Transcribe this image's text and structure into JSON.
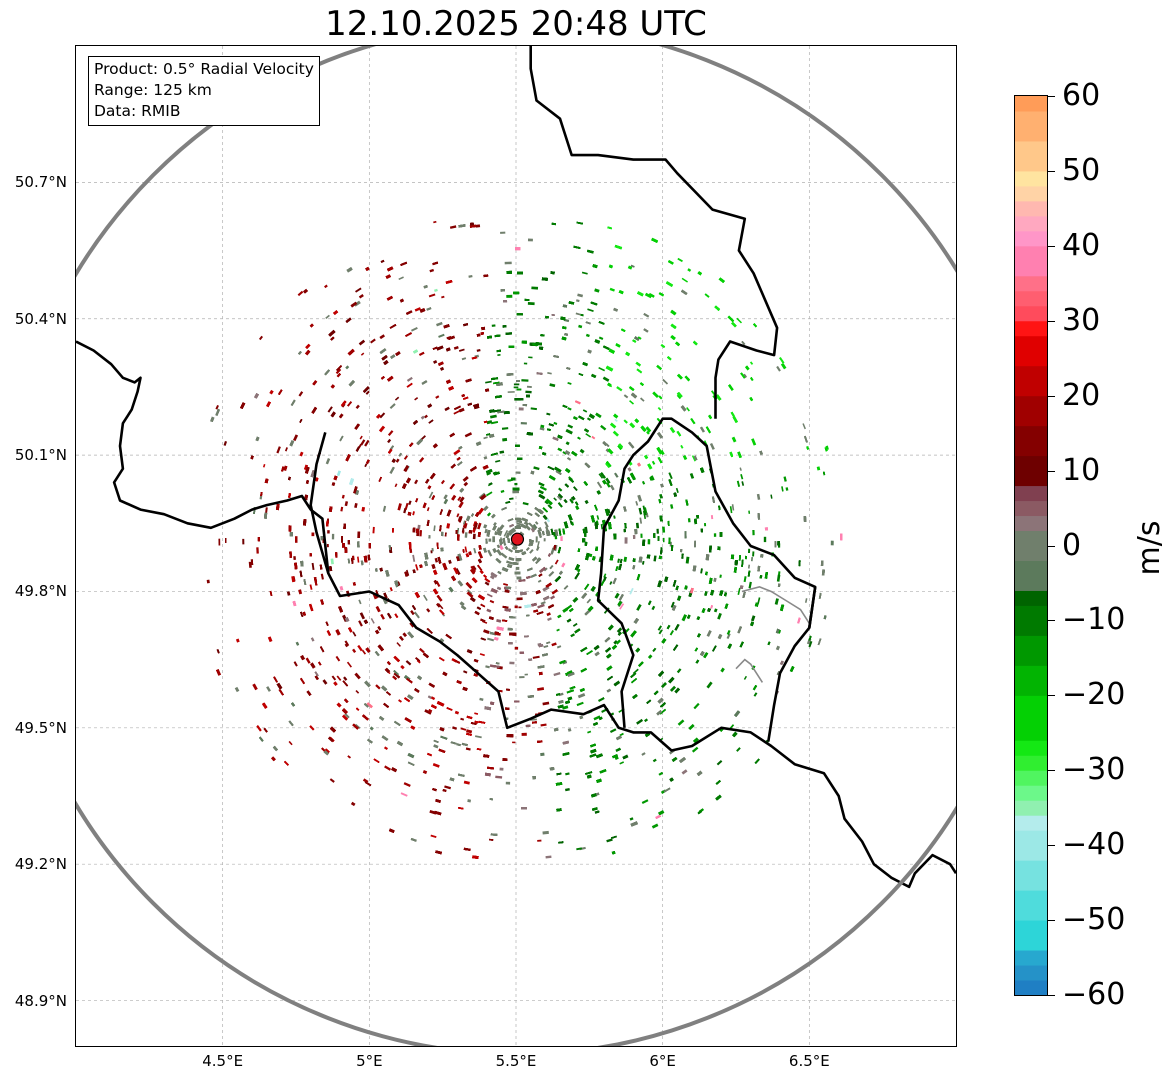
{
  "title": "12.10.2025 20:48 UTC",
  "info_box": {
    "product": "Product: 0.5° Radial Velocity",
    "range": "Range: 125 km",
    "data": "Data: RMIB"
  },
  "map": {
    "lon_range": [
      4.0,
      7.0
    ],
    "lat_range": [
      48.8,
      51.0
    ],
    "lat_ticks": [
      {
        "value": 48.9,
        "label": "48.9°N"
      },
      {
        "value": 49.2,
        "label": "49.2°N"
      },
      {
        "value": 49.5,
        "label": "49.5°N"
      },
      {
        "value": 49.8,
        "label": "49.8°N"
      },
      {
        "value": 50.1,
        "label": "50.1°N"
      },
      {
        "value": 50.4,
        "label": "50.4°N"
      },
      {
        "value": 50.7,
        "label": "50.7°N"
      }
    ],
    "lon_ticks": [
      {
        "value": 4.5,
        "label": "4.5°E"
      },
      {
        "value": 5.0,
        "label": "5°E"
      },
      {
        "value": 5.5,
        "label": "5.5°E"
      },
      {
        "value": 6.0,
        "label": "6°E"
      },
      {
        "value": 6.5,
        "label": "6.5°E"
      }
    ],
    "radar_site": {
      "lon": 5.505,
      "lat": 49.915
    },
    "range_km": 125,
    "borders": [
      [
        [
          4.0,
          50.35
        ],
        [
          4.06,
          50.33
        ],
        [
          4.12,
          50.3
        ],
        [
          4.16,
          50.27
        ],
        [
          4.2,
          50.26
        ],
        [
          4.22,
          50.27
        ],
        [
          4.21,
          50.24
        ],
        [
          4.19,
          50.2
        ],
        [
          4.16,
          50.17
        ],
        [
          4.15,
          50.12
        ],
        [
          4.16,
          50.07
        ],
        [
          4.13,
          50.04
        ],
        [
          4.15,
          50.0
        ],
        [
          4.22,
          49.98
        ],
        [
          4.3,
          49.97
        ],
        [
          4.38,
          49.95
        ],
        [
          4.46,
          49.94
        ],
        [
          4.54,
          49.96
        ],
        [
          4.6,
          49.98
        ],
        [
          4.65,
          49.99
        ],
        [
          4.72,
          50.0
        ],
        [
          4.77,
          50.01
        ],
        [
          4.8,
          49.98
        ],
        [
          4.84,
          49.96
        ],
        [
          4.86,
          49.84
        ],
        [
          4.9,
          49.79
        ],
        [
          5.0,
          49.8
        ],
        [
          5.1,
          49.77
        ],
        [
          5.16,
          49.72
        ],
        [
          5.24,
          49.69
        ],
        [
          5.3,
          49.66
        ],
        [
          5.37,
          49.62
        ],
        [
          5.44,
          49.58
        ],
        [
          5.47,
          49.5
        ],
        [
          5.55,
          49.52
        ],
        [
          5.62,
          49.54
        ],
        [
          5.73,
          49.53
        ],
        [
          5.8,
          49.55
        ],
        [
          5.85,
          49.5
        ],
        [
          5.9,
          49.49
        ],
        [
          5.96,
          49.49
        ],
        [
          6.03,
          49.45
        ],
        [
          6.1,
          49.46
        ],
        [
          6.2,
          49.5
        ],
        [
          6.3,
          49.49
        ],
        [
          6.37,
          49.46
        ],
        [
          6.45,
          49.42
        ],
        [
          6.55,
          49.4
        ],
        [
          6.6,
          49.35
        ],
        [
          6.62,
          49.3
        ],
        [
          6.68,
          49.25
        ],
        [
          6.72,
          49.2
        ],
        [
          6.78,
          49.17
        ],
        [
          6.84,
          49.15
        ],
        [
          6.86,
          49.18
        ],
        [
          6.92,
          49.22
        ],
        [
          6.98,
          49.2
        ],
        [
          7.0,
          49.18
        ]
      ],
      [
        [
          4.85,
          50.15
        ],
        [
          4.82,
          50.08
        ],
        [
          4.8,
          49.99
        ],
        [
          4.82,
          49.93
        ],
        [
          4.86,
          49.84
        ]
      ],
      [
        [
          6.5,
          49.72
        ],
        [
          6.52,
          49.81
        ],
        [
          6.45,
          49.83
        ],
        [
          6.38,
          49.88
        ],
        [
          6.3,
          49.9
        ],
        [
          6.24,
          49.95
        ],
        [
          6.18,
          50.02
        ],
        [
          6.15,
          50.12
        ],
        [
          6.1,
          50.15
        ],
        [
          6.03,
          50.18
        ],
        [
          6.0,
          50.18
        ],
        [
          5.95,
          50.13
        ],
        [
          5.9,
          50.1
        ],
        [
          5.87,
          50.07
        ],
        [
          5.85,
          50.0
        ],
        [
          5.8,
          49.94
        ],
        [
          5.79,
          49.84
        ],
        [
          5.78,
          49.78
        ],
        [
          5.86,
          49.73
        ],
        [
          5.9,
          49.66
        ],
        [
          5.86,
          49.58
        ],
        [
          5.87,
          49.5
        ]
      ],
      [
        [
          6.52,
          49.81
        ],
        [
          6.5,
          49.72
        ],
        [
          6.45,
          49.68
        ],
        [
          6.4,
          49.62
        ],
        [
          6.38,
          49.55
        ],
        [
          6.36,
          49.47
        ]
      ],
      [
        [
          5.55,
          51.0
        ],
        [
          5.55,
          50.95
        ],
        [
          5.57,
          50.88
        ],
        [
          5.65,
          50.84
        ],
        [
          5.69,
          50.76
        ],
        [
          5.78,
          50.76
        ],
        [
          5.9,
          50.75
        ],
        [
          6.01,
          50.75
        ],
        [
          6.05,
          50.72
        ],
        [
          6.17,
          50.64
        ],
        [
          6.28,
          50.62
        ],
        [
          6.26,
          50.55
        ],
        [
          6.31,
          50.5
        ],
        [
          6.39,
          50.38
        ],
        [
          6.38,
          50.32
        ],
        [
          6.32,
          50.33
        ],
        [
          6.23,
          50.35
        ],
        [
          6.19,
          50.31
        ],
        [
          6.18,
          50.27
        ],
        [
          6.18,
          50.18
        ]
      ]
    ],
    "inner_borders": [
      [
        [
          6.27,
          49.8
        ],
        [
          6.33,
          49.81
        ],
        [
          6.37,
          49.8
        ],
        [
          6.42,
          49.78
        ],
        [
          6.47,
          49.76
        ],
        [
          6.5,
          49.73
        ]
      ],
      [
        [
          6.25,
          49.63
        ],
        [
          6.28,
          49.65
        ],
        [
          6.3,
          49.64
        ],
        [
          6.34,
          49.6
        ]
      ]
    ]
  },
  "colorbar": {
    "label": "m/s",
    "vmin": -60,
    "vmax": 60,
    "ticks": [
      {
        "value": 60,
        "label": "60"
      },
      {
        "value": 50,
        "label": "50"
      },
      {
        "value": 40,
        "label": "40"
      },
      {
        "value": 30,
        "label": "30"
      },
      {
        "value": 20,
        "label": "20"
      },
      {
        "value": 10,
        "label": "10"
      },
      {
        "value": 0,
        "label": "0"
      },
      {
        "value": -10,
        "label": "−10"
      },
      {
        "value": -20,
        "label": "−20"
      },
      {
        "value": -30,
        "label": "−30"
      },
      {
        "value": -40,
        "label": "−40"
      },
      {
        "value": -50,
        "label": "−50"
      },
      {
        "value": -60,
        "label": "−60"
      }
    ],
    "color_stops": [
      {
        "from": -60,
        "to": -58,
        "color": "#1f7fc4"
      },
      {
        "from": -58,
        "to": -56,
        "color": "#2592c8"
      },
      {
        "from": -56,
        "to": -54,
        "color": "#27a8cf"
      },
      {
        "from": -54,
        "to": -50,
        "color": "#2dd5d8"
      },
      {
        "from": -50,
        "to": -46,
        "color": "#4fdcdc"
      },
      {
        "from": -46,
        "to": -42,
        "color": "#76e2e0"
      },
      {
        "from": -42,
        "to": -38,
        "color": "#9ce8e6"
      },
      {
        "from": -38,
        "to": -36,
        "color": "#b4ecec"
      },
      {
        "from": -36,
        "to": -34,
        "color": "#90f0b0"
      },
      {
        "from": -34,
        "to": -32,
        "color": "#6cf88a"
      },
      {
        "from": -32,
        "to": -30,
        "color": "#50f560"
      },
      {
        "from": -30,
        "to": -28,
        "color": "#30ee30"
      },
      {
        "from": -28,
        "to": -26,
        "color": "#14e814"
      },
      {
        "from": -26,
        "to": -20,
        "color": "#04d004"
      },
      {
        "from": -20,
        "to": -16,
        "color": "#02b402"
      },
      {
        "from": -16,
        "to": -12,
        "color": "#009800"
      },
      {
        "from": -12,
        "to": -8,
        "color": "#007a00"
      },
      {
        "from": -8,
        "to": -6,
        "color": "#006400"
      },
      {
        "from": -6,
        "to": -2,
        "color": "#5c7a5c"
      },
      {
        "from": -2,
        "to": 2,
        "color": "#707f6c"
      },
      {
        "from": 2,
        "to": 4,
        "color": "#8c7478"
      },
      {
        "from": 4,
        "to": 6,
        "color": "#8b5a63"
      },
      {
        "from": 6,
        "to": 8,
        "color": "#804050"
      },
      {
        "from": 8,
        "to": 12,
        "color": "#6e0000"
      },
      {
        "from": 12,
        "to": 16,
        "color": "#840000"
      },
      {
        "from": 16,
        "to": 20,
        "color": "#a00000"
      },
      {
        "from": 20,
        "to": 24,
        "color": "#c00000"
      },
      {
        "from": 24,
        "to": 28,
        "color": "#e00000"
      },
      {
        "from": 28,
        "to": 30,
        "color": "#ff1414"
      },
      {
        "from": 30,
        "to": 32,
        "color": "#ff4b5c"
      },
      {
        "from": 32,
        "to": 34,
        "color": "#ff5e70"
      },
      {
        "from": 34,
        "to": 36,
        "color": "#ff7088"
      },
      {
        "from": 36,
        "to": 40,
        "color": "#ff80b0"
      },
      {
        "from": 40,
        "to": 42,
        "color": "#ff96c8"
      },
      {
        "from": 42,
        "to": 44,
        "color": "#ffa8c0"
      },
      {
        "from": 44,
        "to": 46,
        "color": "#ffb8b0"
      },
      {
        "from": 46,
        "to": 48,
        "color": "#ffd3a6"
      },
      {
        "from": 48,
        "to": 50,
        "color": "#ffe4a0"
      },
      {
        "from": 50,
        "to": 54,
        "color": "#ffc88a"
      },
      {
        "from": 54,
        "to": 58,
        "color": "#ffb070"
      },
      {
        "from": 58,
        "to": 60,
        "color": "#ff9c58"
      }
    ]
  },
  "colors": {
    "range_ring": "#808080",
    "border": "#000000",
    "inner_border": "#8a8a8a",
    "grid": "#b0b0b0",
    "radar_marker": "#e0141e"
  }
}
